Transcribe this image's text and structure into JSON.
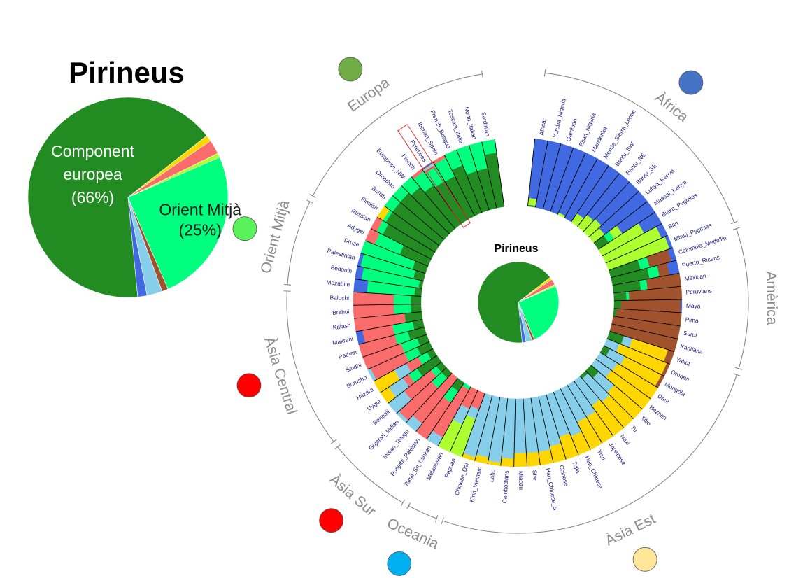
{
  "chart_data": [
    {
      "type": "pie",
      "title": "Pirineus",
      "slices": [
        {
          "label": "Component europea",
          "label_pct": "(66%)",
          "value": 66,
          "color": "#228b22",
          "text_color": "#ffffff"
        },
        {
          "label": "",
          "value": 1.5,
          "color": "#4169e1"
        },
        {
          "label": "",
          "value": 2.5,
          "color": "#87ceeb"
        },
        {
          "label": "",
          "value": 1,
          "color": "#a0522d"
        },
        {
          "label": "Orient Mitjà",
          "label_pct": "(25%)",
          "value": 25,
          "color": "#00ff7f",
          "text_color": "#1a1a1a"
        },
        {
          "label": "",
          "value": 0.7,
          "color": "#adff2f"
        },
        {
          "label": "",
          "value": 2.3,
          "color": "#fa6b6b"
        },
        {
          "label": "",
          "value": 1,
          "color": "#ffd700"
        }
      ]
    },
    {
      "type": "bar",
      "title": "Pirineus",
      "layout": "circular-stacked",
      "components": [
        {
          "name": "",
          "color": "#228b22"
        },
        {
          "name": "",
          "color": "#00ff7f"
        },
        {
          "name": "",
          "color": "#fa6b6b"
        },
        {
          "name": "",
          "color": "#ffd700"
        },
        {
          "name": "",
          "color": "#87ceeb"
        },
        {
          "name": "",
          "color": "#4169e1"
        },
        {
          "name": "",
          "color": "#adff2f"
        },
        {
          "name": "",
          "color": "#a0522d"
        }
      ],
      "regions": [
        {
          "name": "Àfrica",
          "color": "#4472c4"
        },
        {
          "name": "Amèrica",
          "color": "#7f6000"
        },
        {
          "name": "Àsia Est",
          "color": "#ffe699"
        },
        {
          "name": "Oceania",
          "color": "#00b0f0"
        },
        {
          "name": "Àsia Sur",
          "color": "#ff0000"
        },
        {
          "name": "Àsia Central",
          "color": "#ff0000"
        },
        {
          "name": "Orient Mitjà",
          "color": "#5af25a"
        },
        {
          "name": "Europa",
          "color": "#70ad47"
        }
      ],
      "highlighted_population": "Pyrenees",
      "populations": [
        {
          "name": "African",
          "region": 0,
          "p": {
            "blue": 0.88,
            "lime": 0.1,
            "green": 0.02
          }
        },
        {
          "name": "Yoruba_Nigeria",
          "region": 0,
          "p": {
            "blue": 1
          }
        },
        {
          "name": "Gambian",
          "region": 0,
          "p": {
            "blue": 1
          }
        },
        {
          "name": "Esan_Nigeria",
          "region": 0,
          "p": {
            "blue": 1
          }
        },
        {
          "name": "Mandenka",
          "region": 0,
          "p": {
            "blue": 0.97,
            "lime": 0.03
          }
        },
        {
          "name": "Mende_Sierra_Leone",
          "region": 0,
          "p": {
            "blue": 1
          }
        },
        {
          "name": "Bantu_SW",
          "region": 0,
          "p": {
            "blue": 0.85,
            "lime": 0.15
          }
        },
        {
          "name": "Bantu_NE",
          "region": 0,
          "p": {
            "blue": 0.78,
            "lime": 0.22
          }
        },
        {
          "name": "Bantu_SE",
          "region": 0,
          "p": {
            "blue": 0.75,
            "lime": 0.25
          }
        },
        {
          "name": "Luhya_Kenya",
          "region": 0,
          "p": {
            "blue": 0.8,
            "lime": 0.2
          }
        },
        {
          "name": "Maasai_Kenya",
          "region": 0,
          "p": {
            "blue": 0.58,
            "lime": 0.14,
            "green": 0.18,
            "springgreen": 0.1
          }
        },
        {
          "name": "Biaka_Pygmies",
          "region": 0,
          "p": {
            "blue": 0.3,
            "lime": 0.7
          }
        },
        {
          "name": "San",
          "region": 0,
          "p": {
            "blue": 0.1,
            "lime": 0.9
          }
        },
        {
          "name": "Mbuti_Pygmies",
          "region": 0,
          "p": {
            "blue": 0.05,
            "lime": 0.95
          }
        },
        {
          "name": "Colombia_Medellin",
          "region": 1,
          "p": {
            "brown": 0.33,
            "green": 0.45,
            "blue": 0.08,
            "springgreen": 0.14
          }
        },
        {
          "name": "Puerto_Ricans",
          "region": 1,
          "p": {
            "brown": 0.15,
            "green": 0.55,
            "blue": 0.15,
            "springgreen": 0.15
          }
        },
        {
          "name": "Mexican",
          "region": 1,
          "p": {
            "brown": 0.5,
            "green": 0.4,
            "springgreen": 0.1
          }
        },
        {
          "name": "Peruvians",
          "region": 1,
          "p": {
            "brown": 0.78,
            "green": 0.18,
            "springgreen": 0.04
          }
        },
        {
          "name": "Maya",
          "region": 1,
          "p": {
            "brown": 0.88,
            "green": 0.1,
            "blue": 0.02
          }
        },
        {
          "name": "Pima",
          "region": 1,
          "p": {
            "brown": 0.96,
            "green": 0.04
          }
        },
        {
          "name": "Surui",
          "region": 1,
          "p": {
            "brown": 1
          }
        },
        {
          "name": "Karitiana",
          "region": 1,
          "p": {
            "brown": 1
          }
        },
        {
          "name": "Yakut",
          "region": 2,
          "p": {
            "gold": 0.55,
            "green": 0.22,
            "skyblue": 0.13,
            "brown": 0.1
          }
        },
        {
          "name": "Oroqen",
          "region": 2,
          "p": {
            "gold": 0.75,
            "skyblue": 0.2,
            "brown": 0.05
          }
        },
        {
          "name": "Mongola",
          "region": 2,
          "p": {
            "gold": 0.6,
            "skyblue": 0.25,
            "green": 0.1,
            "brown": 0.05
          }
        },
        {
          "name": "Daur",
          "region": 2,
          "p": {
            "gold": 0.7,
            "skyblue": 0.3
          }
        },
        {
          "name": "Hezhen",
          "region": 2,
          "p": {
            "gold": 0.72,
            "skyblue": 0.28
          }
        },
        {
          "name": "Xibo",
          "region": 2,
          "p": {
            "gold": 0.55,
            "skyblue": 0.3,
            "green": 0.15
          }
        },
        {
          "name": "Tu",
          "region": 2,
          "p": {
            "gold": 0.5,
            "skyblue": 0.45,
            "green": 0.05
          }
        },
        {
          "name": "Naxi",
          "region": 2,
          "p": {
            "gold": 0.55,
            "skyblue": 0.45
          }
        },
        {
          "name": "Japanese",
          "region": 2,
          "p": {
            "gold": 0.45,
            "skyblue": 0.55
          }
        },
        {
          "name": "Yizu",
          "region": 2,
          "p": {
            "gold": 0.45,
            "skyblue": 0.55
          }
        },
        {
          "name": "Han_Chinese",
          "region": 2,
          "p": {
            "gold": 0.3,
            "skyblue": 0.7
          }
        },
        {
          "name": "Tujia",
          "region": 2,
          "p": {
            "gold": 0.35,
            "skyblue": 0.65
          }
        },
        {
          "name": "Chinese",
          "region": 2,
          "p": {
            "gold": 0.25,
            "skyblue": 0.75
          }
        },
        {
          "name": "Han_Chinese_S",
          "region": 2,
          "p": {
            "gold": 0.2,
            "skyblue": 0.8
          }
        },
        {
          "name": "She",
          "region": 2,
          "p": {
            "gold": 0.2,
            "skyblue": 0.8
          }
        },
        {
          "name": "Miaozu",
          "region": 2,
          "p": {
            "gold": 0.2,
            "skyblue": 0.8
          }
        },
        {
          "name": "Cambodians",
          "region": 2,
          "p": {
            "gold": 0.12,
            "skyblue": 0.88
          }
        },
        {
          "name": "Lahu",
          "region": 2,
          "p": {
            "gold": 0.05,
            "skyblue": 0.95
          }
        },
        {
          "name": "Kinh_Vietnam",
          "region": 2,
          "p": {
            "gold": 0.1,
            "skyblue": 0.9
          }
        },
        {
          "name": "Chinese_Dai",
          "region": 2,
          "p": {
            "gold": 0.06,
            "skyblue": 0.94
          }
        },
        {
          "name": "Papuan",
          "region": 3,
          "p": {
            "skyblue": 0.15,
            "lime": 0.6,
            "salmon": 0.25
          }
        },
        {
          "name": "Melanesian",
          "region": 3,
          "p": {
            "skyblue": 0.25,
            "lime": 0.45,
            "salmon": 0.3
          }
        },
        {
          "name": "Tamil_Sri_Lankan",
          "region": 4,
          "p": {
            "salmon": 0.8,
            "skyblue": 0.15,
            "springgreen": 0.05
          }
        },
        {
          "name": "Punjabi_Pakistan",
          "region": 4,
          "p": {
            "salmon": 0.65,
            "green": 0.15,
            "springgreen": 0.2
          }
        },
        {
          "name": "Indian_Telugu",
          "region": 4,
          "p": {
            "salmon": 0.85,
            "skyblue": 0.15
          }
        },
        {
          "name": "Gujarati_Indian",
          "region": 4,
          "p": {
            "salmon": 0.65,
            "springgreen": 0.2,
            "green": 0.1,
            "skyblue": 0.05
          }
        },
        {
          "name": "Bengali",
          "region": 4,
          "p": {
            "salmon": 0.5,
            "skyblue": 0.3,
            "springgreen": 0.1,
            "green": 0.1
          }
        },
        {
          "name": "Uygur",
          "region": 5,
          "p": {
            "skyblue": 0.25,
            "gold": 0.15,
            "green": 0.35,
            "springgreen": 0.15,
            "salmon": 0.1
          }
        },
        {
          "name": "Hazara",
          "region": 5,
          "p": {
            "gold": 0.35,
            "skyblue": 0.2,
            "springgreen": 0.15,
            "salmon": 0.2,
            "green": 0.1
          }
        },
        {
          "name": "Burusho",
          "region": 5,
          "p": {
            "salmon": 0.55,
            "green": 0.2,
            "springgreen": 0.2,
            "skyblue": 0.05
          }
        },
        {
          "name": "Sindhi",
          "region": 5,
          "p": {
            "salmon": 0.6,
            "springgreen": 0.25,
            "green": 0.15
          }
        },
        {
          "name": "Pathan",
          "region": 5,
          "p": {
            "salmon": 0.55,
            "springgreen": 0.2,
            "green": 0.25
          }
        },
        {
          "name": "Makrani",
          "region": 5,
          "p": {
            "salmon": 0.45,
            "springgreen": 0.3,
            "blue": 0.1,
            "green": 0.15
          }
        },
        {
          "name": "Kalash",
          "region": 5,
          "p": {
            "salmon": 0.75,
            "green": 0.25
          }
        },
        {
          "name": "Brahui",
          "region": 5,
          "p": {
            "salmon": 0.6,
            "springgreen": 0.25,
            "green": 0.15
          }
        },
        {
          "name": "Balochi",
          "region": 5,
          "p": {
            "salmon": 0.6,
            "springgreen": 0.25,
            "green": 0.15
          }
        },
        {
          "name": "Mozabite",
          "region": 6,
          "p": {
            "springgreen": 0.7,
            "blue": 0.2,
            "green": 0.1
          }
        },
        {
          "name": "Bedouin",
          "region": 6,
          "p": {
            "springgreen": 0.85,
            "blue": 0.1,
            "green": 0.05
          }
        },
        {
          "name": "Palestinian",
          "region": 6,
          "p": {
            "springgreen": 0.8,
            "green": 0.15,
            "blue": 0.05
          }
        },
        {
          "name": "Druze",
          "region": 6,
          "p": {
            "springgreen": 0.8,
            "green": 0.2
          }
        },
        {
          "name": "Adygei",
          "region": 6,
          "p": {
            "green": 0.45,
            "springgreen": 0.4,
            "salmon": 0.15
          }
        },
        {
          "name": "Russian",
          "region": 7,
          "p": {
            "green": 0.8,
            "springgreen": 0.1,
            "salmon": 0.1
          }
        },
        {
          "name": "Finnish",
          "region": 7,
          "p": {
            "green": 0.85,
            "springgreen": 0.05,
            "gold": 0.1
          }
        },
        {
          "name": "British",
          "region": 7,
          "p": {
            "green": 0.85,
            "springgreen": 0.15
          }
        },
        {
          "name": "Orcadian",
          "region": 7,
          "p": {
            "green": 0.85,
            "springgreen": 0.15
          }
        },
        {
          "name": "European_NW",
          "region": 7,
          "p": {
            "green": 0.8,
            "springgreen": 0.2
          }
        },
        {
          "name": "French",
          "region": 7,
          "p": {
            "green": 0.7,
            "springgreen": 0.25,
            "salmon": 0.05
          }
        },
        {
          "name": "Pyrenees",
          "region": 7,
          "p": {
            "green": 0.66,
            "springgreen": 0.25,
            "salmon": 0.03,
            "skyblue": 0.03,
            "blue": 0.02,
            "gold": 0.01
          }
        },
        {
          "name": "Iberian_Spain",
          "region": 7,
          "p": {
            "green": 0.65,
            "springgreen": 0.3,
            "salmon": 0.05
          }
        },
        {
          "name": "French_Basque",
          "region": 7,
          "p": {
            "green": 0.75,
            "springgreen": 0.25
          }
        },
        {
          "name": "Toscani_Italia",
          "region": 7,
          "p": {
            "green": 0.6,
            "springgreen": 0.4
          }
        },
        {
          "name": "North_Italian",
          "region": 7,
          "p": {
            "green": 0.6,
            "springgreen": 0.4
          }
        },
        {
          "name": "Sardinian",
          "region": 7,
          "p": {
            "green": 0.8,
            "springgreen": 0.2
          }
        }
      ]
    }
  ]
}
